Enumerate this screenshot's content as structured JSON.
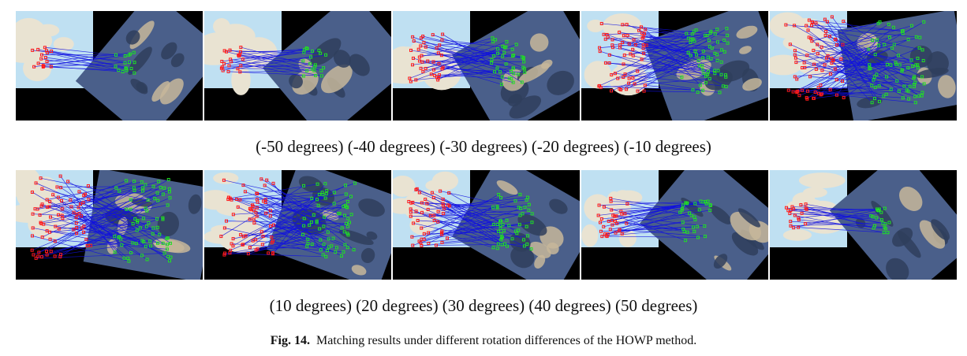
{
  "top_row": {
    "panels": [
      {
        "rotation": -50,
        "density": 0.12
      },
      {
        "rotation": -40,
        "density": 0.18
      },
      {
        "rotation": -30,
        "density": 0.45
      },
      {
        "rotation": -20,
        "density": 0.75
      },
      {
        "rotation": -10,
        "density": 0.95
      }
    ],
    "caption": "(-50 degrees) (-40 degrees) (-30 degrees) (-20 degrees) (-10 degrees)"
  },
  "bottom_row": {
    "panels": [
      {
        "rotation": 10,
        "density": 0.95
      },
      {
        "rotation": 20,
        "density": 0.85
      },
      {
        "rotation": 30,
        "density": 0.6
      },
      {
        "rotation": 40,
        "density": 0.35
      },
      {
        "rotation": 50,
        "density": 0.15
      }
    ],
    "caption": "(10 degrees) (20 degrees) (30 degrees) (40 degrees) (50 degrees)"
  },
  "figure": {
    "label": "Fig. 14.",
    "text": "Matching results under different rotation differences of the HOWP method."
  },
  "colors": {
    "map_water": "#bfe0f2",
    "map_land": "#e9e3d2",
    "sat_base": "#4a5f8a",
    "match_line": "#1010e0",
    "ref_point": "#ff1a1a",
    "sensed_point": "#22e022",
    "background": "#000000"
  }
}
